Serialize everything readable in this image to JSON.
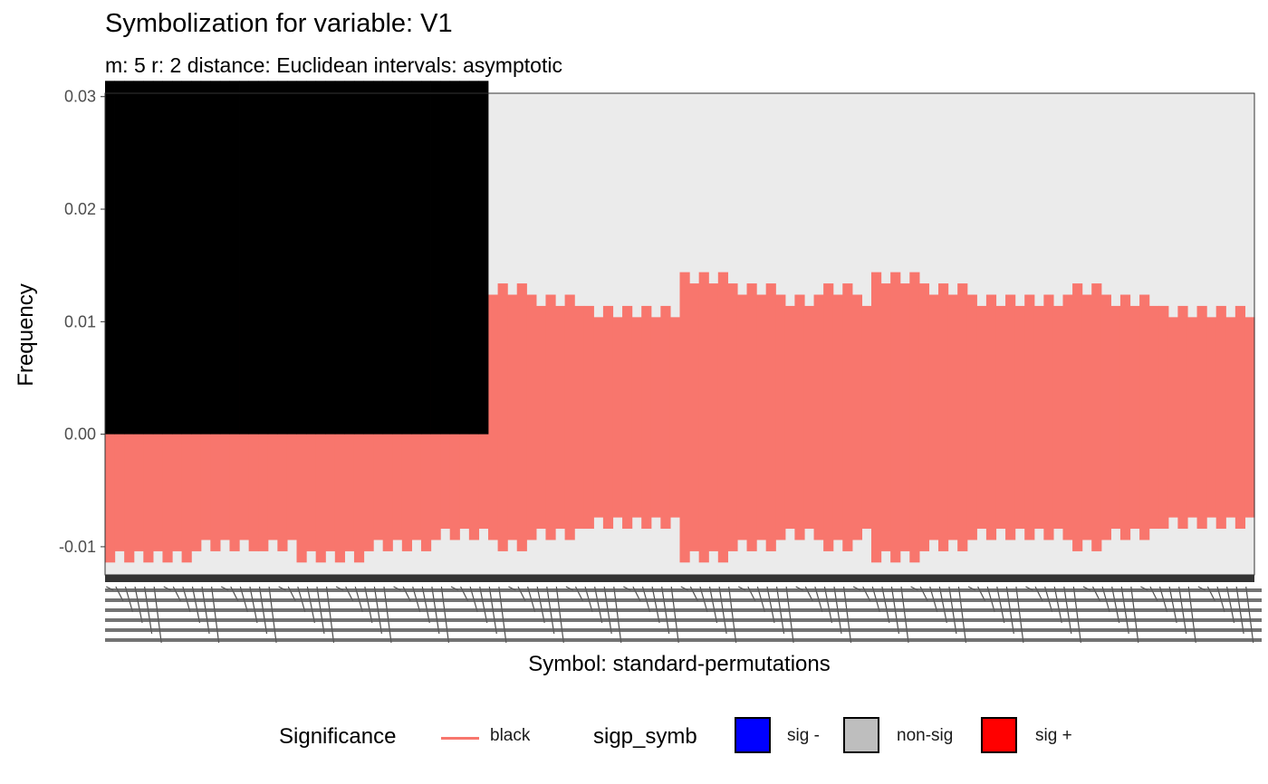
{
  "chart_data": {
    "type": "bar",
    "title": "Symbolization for variable: V1",
    "subtitle": "m: 5  r:  2  distance:  Euclidean  intervals:  asymptotic",
    "xlabel": "Symbol: standard-permutations",
    "ylabel": "Frequency",
    "ylim": [
      -0.0125,
      0.0303
    ],
    "yticks": [
      -0.01,
      0.0,
      0.01,
      0.02,
      0.03
    ],
    "ytick_labels": [
      "-0.01",
      "0.00",
      "0.01",
      "0.02",
      "0.03"
    ],
    "n_categories": 120,
    "series": [
      {
        "name": "black",
        "kind": "observed frequency",
        "color": "#000000",
        "values": [
          0.0314,
          0.0314,
          0.0314,
          0.0314,
          0.0314,
          0.0314,
          0.0314,
          0.0314,
          0.0314,
          0.0314,
          0.0314,
          0.0314,
          0.0314,
          0.0314,
          0.0314,
          0.0314,
          0.0314,
          0.0314,
          0.0314,
          0.0314,
          0.0314,
          0.0314,
          0.0314,
          0.0314,
          0.0314,
          0.0314,
          0.0314,
          0.0314,
          0.0314,
          0.0314,
          0.0314,
          0.0314,
          0.0314,
          0.0314,
          0.0314,
          0.0314,
          0.0314,
          0.0314,
          0.0314,
          0.0314,
          0,
          0,
          0,
          0,
          0,
          0,
          0,
          0,
          0,
          0,
          0,
          0,
          0,
          0,
          0,
          0,
          0,
          0,
          0,
          0,
          0,
          0,
          0,
          0,
          0,
          0,
          0,
          0,
          0,
          0,
          0,
          0,
          0,
          0,
          0,
          0,
          0,
          0,
          0,
          0,
          0,
          0,
          0,
          0,
          0,
          0,
          0,
          0,
          0,
          0,
          0,
          0,
          0,
          0,
          0,
          0,
          0,
          0,
          0,
          0,
          0,
          0,
          0,
          0,
          0,
          0,
          0,
          0,
          0,
          0,
          0,
          0,
          0,
          0,
          0,
          0,
          0,
          0,
          0,
          0
        ]
      },
      {
        "name": "black",
        "kind": "asymptotic interval (upper)",
        "color": "#F8766D",
        "values": [
          0.0144,
          0.0134,
          0.0144,
          0.0134,
          0.0144,
          0.0134,
          0.0144,
          0.0134,
          0.0144,
          0.0134,
          0.0124,
          0.0134,
          0.0124,
          0.0134,
          0.0124,
          0.0134,
          0.0134,
          0.0124,
          0.0134,
          0.0124,
          0.0144,
          0.0134,
          0.0144,
          0.0134,
          0.0144,
          0.0134,
          0.0144,
          0.0134,
          0.0124,
          0.0134,
          0.0124,
          0.0134,
          0.0124,
          0.0134,
          0.0124,
          0.0114,
          0.0124,
          0.0114,
          0.0124,
          0.0114,
          0.0124,
          0.0134,
          0.0124,
          0.0134,
          0.0124,
          0.0114,
          0.0124,
          0.0114,
          0.0124,
          0.0114,
          0.0114,
          0.0104,
          0.0114,
          0.0104,
          0.0114,
          0.0104,
          0.0114,
          0.0104,
          0.0114,
          0.0104,
          0.0144,
          0.0134,
          0.0144,
          0.0134,
          0.0144,
          0.0134,
          0.0124,
          0.0134,
          0.0124,
          0.0134,
          0.0124,
          0.0114,
          0.0124,
          0.0114,
          0.0124,
          0.0134,
          0.0124,
          0.0134,
          0.0124,
          0.0114,
          0.0144,
          0.0134,
          0.0144,
          0.0134,
          0.0144,
          0.0134,
          0.0124,
          0.0134,
          0.0124,
          0.0134,
          0.0124,
          0.0114,
          0.0124,
          0.0114,
          0.0124,
          0.0114,
          0.0124,
          0.0114,
          0.0124,
          0.0114,
          0.0124,
          0.0134,
          0.0124,
          0.0134,
          0.0124,
          0.0114,
          0.0124,
          0.0114,
          0.0124,
          0.0114,
          0.0114,
          0.0104,
          0.0114,
          0.0104,
          0.0114,
          0.0104,
          0.0114,
          0.0104,
          0.0114,
          0.0104
        ]
      },
      {
        "name": "black",
        "kind": "asymptotic interval (lower)",
        "color": "#F8766D",
        "values": [
          -0.0114,
          -0.0104,
          -0.0114,
          -0.0104,
          -0.0114,
          -0.0104,
          -0.0114,
          -0.0104,
          -0.0114,
          -0.0104,
          -0.0094,
          -0.0104,
          -0.0094,
          -0.0104,
          -0.0094,
          -0.0104,
          -0.0104,
          -0.0094,
          -0.0104,
          -0.0094,
          -0.0114,
          -0.0104,
          -0.0114,
          -0.0104,
          -0.0114,
          -0.0104,
          -0.0114,
          -0.0104,
          -0.0094,
          -0.0104,
          -0.0094,
          -0.0104,
          -0.0094,
          -0.0104,
          -0.0094,
          -0.0084,
          -0.0094,
          -0.0084,
          -0.0094,
          -0.0084,
          -0.0094,
          -0.0104,
          -0.0094,
          -0.0104,
          -0.0094,
          -0.0084,
          -0.0094,
          -0.0084,
          -0.0094,
          -0.0084,
          -0.0084,
          -0.0074,
          -0.0084,
          -0.0074,
          -0.0084,
          -0.0074,
          -0.0084,
          -0.0074,
          -0.0084,
          -0.0074,
          -0.0114,
          -0.0104,
          -0.0114,
          -0.0104,
          -0.0114,
          -0.0104,
          -0.0094,
          -0.0104,
          -0.0094,
          -0.0104,
          -0.0094,
          -0.0084,
          -0.0094,
          -0.0084,
          -0.0094,
          -0.0104,
          -0.0094,
          -0.0104,
          -0.0094,
          -0.0084,
          -0.0114,
          -0.0104,
          -0.0114,
          -0.0104,
          -0.0114,
          -0.0104,
          -0.0094,
          -0.0104,
          -0.0094,
          -0.0104,
          -0.0094,
          -0.0084,
          -0.0094,
          -0.0084,
          -0.0094,
          -0.0084,
          -0.0094,
          -0.0084,
          -0.0094,
          -0.0084,
          -0.0094,
          -0.0104,
          -0.0094,
          -0.0104,
          -0.0094,
          -0.0084,
          -0.0094,
          -0.0084,
          -0.0094,
          -0.0084,
          -0.0084,
          -0.0074,
          -0.0084,
          -0.0074,
          -0.0084,
          -0.0074,
          -0.0084,
          -0.0074,
          -0.0084,
          -0.0074
        ]
      }
    ],
    "legend": {
      "position": "bottom",
      "groups": [
        {
          "title": "Significance",
          "items": [
            {
              "label": "black",
              "color": "#F8766D",
              "key": "line"
            }
          ]
        },
        {
          "title": "sigp_symb",
          "items": [
            {
              "label": "sig -",
              "color": "#0000FF",
              "key": "box"
            },
            {
              "label": "non-sig",
              "color": "#BEBEBE",
              "key": "box"
            },
            {
              "label": "sig +",
              "color": "#FF0000",
              "key": "box"
            }
          ]
        }
      ]
    },
    "panel_background": "#EBEBEB",
    "grid": false
  }
}
